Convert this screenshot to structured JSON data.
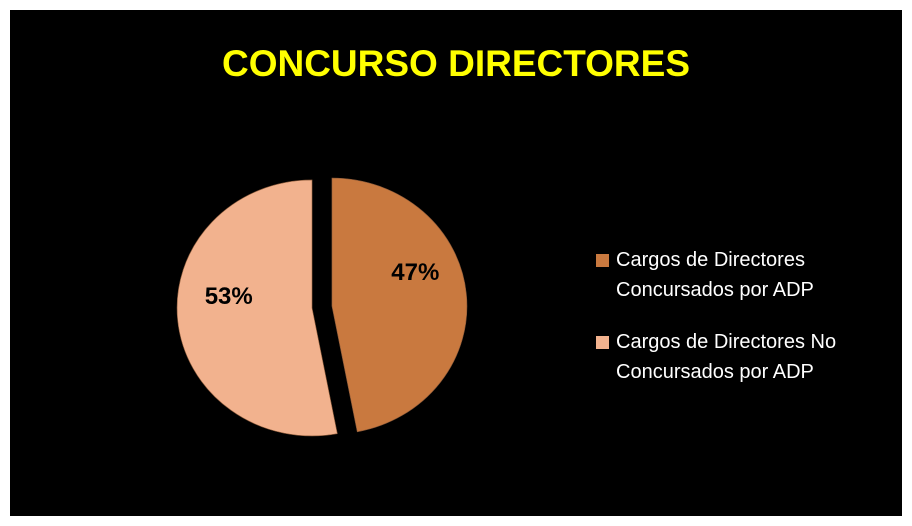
{
  "chart_data": {
    "type": "pie",
    "title": "CONCURSO DIRECTORES",
    "categories": [
      "Cargos de Directores Concursados por ADP",
      "Cargos de Directores No Concursados por ADP"
    ],
    "values": [
      47,
      53
    ],
    "value_labels": [
      "47%",
      "53%"
    ],
    "colors": [
      "#c9793f",
      "#f2b28e"
    ],
    "legend": "right"
  }
}
